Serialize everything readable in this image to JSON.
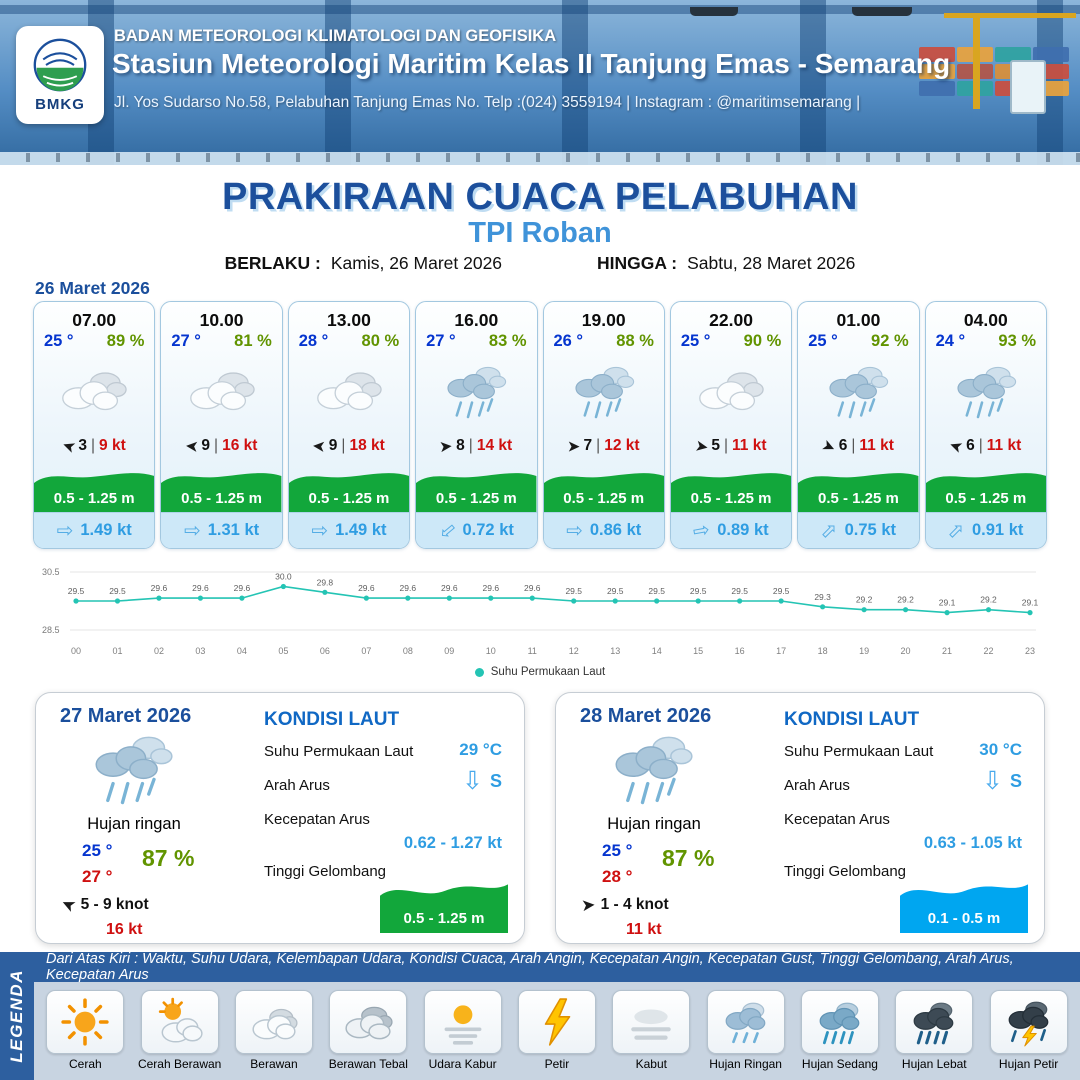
{
  "header": {
    "logo_text": "BMKG",
    "agency": "BADAN METEOROLOGI KLIMATOLOGI DAN GEOFISIKA",
    "station": "Stasiun Meteorologi Maritim Kelas II Tanjung Emas - Semarang",
    "address": "Jl. Yos Sudarso No.58, Pelabuhan Tanjung Emas No. Telp :(024) 3559194 | Instagram : @maritimsemarang |"
  },
  "title": {
    "main": "PRAKIRAAN CUACA PELABUHAN",
    "location": "TPI Roban",
    "berlaku_label": "BERLAKU :",
    "berlaku_value": "Kamis, 26 Maret 2026",
    "hingga_label": "HINGGA :",
    "hingga_value": "Sabtu, 28 Maret 2026"
  },
  "forecast": {
    "date": "26 Maret 2026",
    "sep": "|",
    "cards": [
      {
        "time": "07.00",
        "temp": "25 °",
        "rh": "89 %",
        "icon": "cloud",
        "wind_dir_deg": 200,
        "wind_val": "3",
        "wind_kt": "9 kt",
        "wave": "0.5 - 1.25 m",
        "cur_deg": 0,
        "cur": "1.49 kt"
      },
      {
        "time": "10.00",
        "temp": "27 °",
        "rh": "81 %",
        "icon": "cloud",
        "wind_dir_deg": 185,
        "wind_val": "9",
        "wind_kt": "16 kt",
        "wave": "0.5 - 1.25 m",
        "cur_deg": 0,
        "cur": "1.31 kt"
      },
      {
        "time": "13.00",
        "temp": "28 °",
        "rh": "80 %",
        "icon": "cloud",
        "wind_dir_deg": 185,
        "wind_val": "9",
        "wind_kt": "18 kt",
        "wave": "0.5 - 1.25 m",
        "cur_deg": 0,
        "cur": "1.49 kt"
      },
      {
        "time": "16.00",
        "temp": "27 °",
        "rh": "83 %",
        "icon": "rain",
        "wind_dir_deg": 355,
        "wind_val": "8",
        "wind_kt": "14 kt",
        "wave": "0.5 - 1.25 m",
        "cur_deg": 140,
        "cur": "0.72 kt"
      },
      {
        "time": "19.00",
        "temp": "26 °",
        "rh": "88 %",
        "icon": "rain",
        "wind_dir_deg": 0,
        "wind_val": "7",
        "wind_kt": "12 kt",
        "wave": "0.5 - 1.25 m",
        "cur_deg": 0,
        "cur": "0.86 kt"
      },
      {
        "time": "22.00",
        "temp": "25 °",
        "rh": "90 %",
        "icon": "cloud",
        "wind_dir_deg": 10,
        "wind_val": "5",
        "wind_kt": "11 kt",
        "wave": "0.5 - 1.25 m",
        "cur_deg": 350,
        "cur": "0.89 kt"
      },
      {
        "time": "01.00",
        "temp": "25 °",
        "rh": "92 %",
        "icon": "rain",
        "wind_dir_deg": 25,
        "wind_val": "6",
        "wind_kt": "11 kt",
        "wave": "0.5 - 1.25 m",
        "cur_deg": 315,
        "cur": "0.75 kt"
      },
      {
        "time": "04.00",
        "temp": "24 °",
        "rh": "93 %",
        "icon": "rain",
        "wind_dir_deg": 200,
        "wind_val": "6",
        "wind_kt": "11 kt",
        "wave": "0.5 - 1.25 m",
        "cur_deg": 315,
        "cur": "0.91 kt"
      }
    ]
  },
  "chart_data": {
    "type": "line",
    "title": "",
    "xlabel": "",
    "ylabel": "",
    "x": [
      "00",
      "01",
      "02",
      "03",
      "04",
      "05",
      "06",
      "07",
      "08",
      "09",
      "10",
      "11",
      "12",
      "13",
      "14",
      "15",
      "16",
      "17",
      "18",
      "19",
      "20",
      "21",
      "22",
      "23"
    ],
    "values": [
      29.5,
      29.5,
      29.6,
      29.6,
      29.6,
      30.0,
      29.8,
      29.6,
      29.6,
      29.6,
      29.6,
      29.6,
      29.5,
      29.5,
      29.5,
      29.5,
      29.5,
      29.5,
      29.3,
      29.2,
      29.2,
      29.1,
      29.2,
      29.1
    ],
    "ylim": [
      28.5,
      30.5
    ],
    "legend": "Suhu Permukaan Laut",
    "legend_position": "bottom-center",
    "grid": "horizontal-faint",
    "line_color": "#24c4b4"
  },
  "sea_labels": {
    "heading": "KONDISI LAUT",
    "sst": "Suhu Permukaan Laut",
    "arus": "Arah Arus",
    "kec": "Kecepatan Arus",
    "gel": "Tinggi Gelombang"
  },
  "day_cards": [
    {
      "date": "27 Maret 2026",
      "condition": "Hujan ringan",
      "temp_min": "25 °",
      "temp_max": "27 °",
      "rh": "87 %",
      "wind_deg": 205,
      "wind_range": "5 - 9 knot",
      "gust": "16 kt",
      "sst": "29 °C",
      "arus_dir": "S",
      "kec": "0.62 - 1.27 kt",
      "gel": "0.5 - 1.25 m",
      "gel_level": "green"
    },
    {
      "date": "28 Maret 2026",
      "condition": "Hujan ringan",
      "temp_min": "25 °",
      "temp_max": "28 °",
      "rh": "87 %",
      "wind_deg": 355,
      "wind_range": "1 - 4 knot",
      "gust": "11 kt",
      "sst": "30 °C",
      "arus_dir": "S",
      "kec": "0.63 - 1.05 kt",
      "gel": "0.1 - 0.5 m",
      "gel_level": "blue"
    }
  ],
  "legend": {
    "vertical_label": "LEGENDA",
    "note": "Dari Atas Kiri : Waktu, Suhu Udara, Kelembapan Udara, Kondisi Cuaca, Arah Angin, Kecepatan Angin, Kecepatan Gust, Tinggi Gelombang, Arah Arus, Kecepatan Arus",
    "items": [
      {
        "label": "Cerah",
        "icon": "sun-icon"
      },
      {
        "label": "Cerah Berawan",
        "icon": "sun-cloud-icon"
      },
      {
        "label": "Berawan",
        "icon": "cloud-icon"
      },
      {
        "label": "Berawan Tebal",
        "icon": "thick-cloud-icon"
      },
      {
        "label": "Udara Kabur",
        "icon": "haze-icon"
      },
      {
        "label": "Petir",
        "icon": "lightning-icon"
      },
      {
        "label": "Kabut",
        "icon": "fog-icon"
      },
      {
        "label": "Hujan Ringan",
        "icon": "light-rain-icon"
      },
      {
        "label": "Hujan Sedang",
        "icon": "moderate-rain-icon"
      },
      {
        "label": "Hujan Lebat",
        "icon": "heavy-rain-icon"
      },
      {
        "label": "Hujan Petir",
        "icon": "thunderstorm-icon"
      }
    ]
  }
}
